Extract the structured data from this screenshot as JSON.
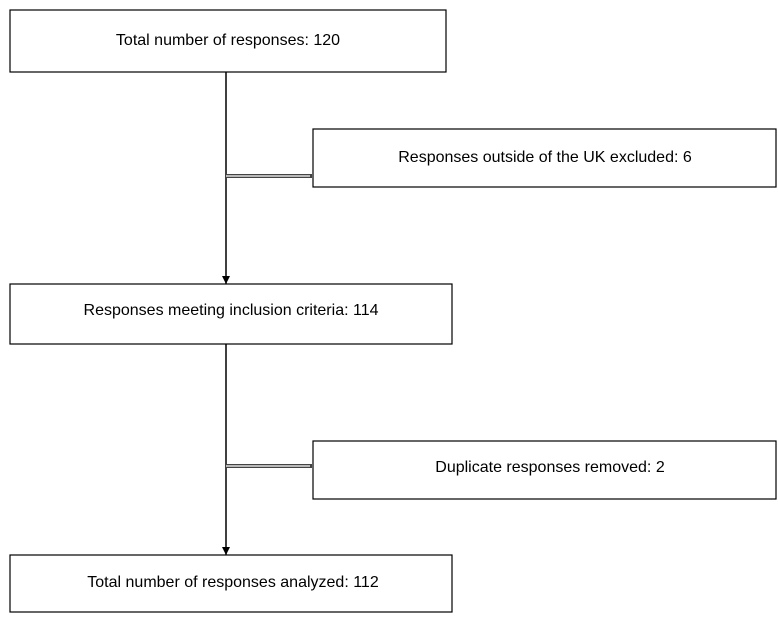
{
  "nodes": [
    {
      "label": "Total number of responses: 120"
    },
    {
      "label": "Responses outside of the UK excluded: 6"
    },
    {
      "label": "Responses meeting inclusion criteria: 114"
    },
    {
      "label": "Duplicate responses removed: 2"
    },
    {
      "label": "Total number of responses analyzed: 112"
    }
  ]
}
